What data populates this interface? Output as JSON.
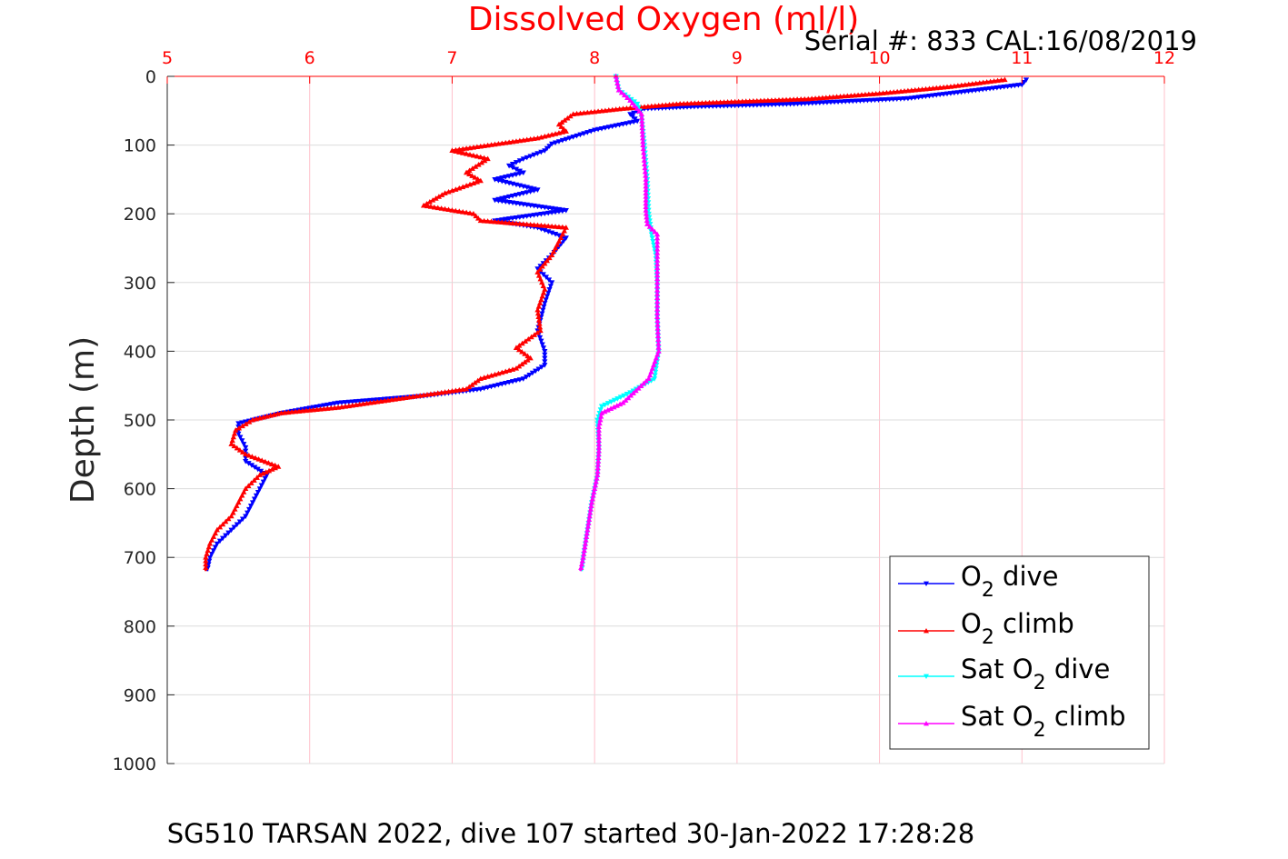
{
  "chart_data": {
    "type": "line",
    "title": "Dissolved Oxygen (ml/l)",
    "subtitle": "Serial #: 833  CAL:16/08/2019",
    "xlabel": "",
    "ylabel": "Depth (m)",
    "caption": "SG510 TARSAN 2022, dive 107 started 30-Jan-2022 17:28:28",
    "xlim": [
      5,
      12
    ],
    "ylim": [
      0,
      1000
    ],
    "y_reversed": true,
    "x_axis_position": "top",
    "x_ticks": [
      "5",
      "6",
      "7",
      "8",
      "9",
      "10",
      "11",
      "12"
    ],
    "y_ticks": [
      "0",
      "100",
      "200",
      "300",
      "400",
      "500",
      "600",
      "700",
      "800",
      "900",
      "1000"
    ],
    "grid": true,
    "legend_position": "bottom-right",
    "colors": {
      "title": "#ff0000",
      "x_ticks": "#ff0000",
      "grid": "#ffc0cb"
    },
    "series": [
      {
        "name_parts": [
          "O",
          "2",
          " dive"
        ],
        "color": "#0000ff",
        "marker": "triangle-down",
        "points": [
          [
            11.03,
            5
          ],
          [
            11.0,
            12
          ],
          [
            10.6,
            22
          ],
          [
            10.2,
            32
          ],
          [
            9.4,
            40
          ],
          [
            8.7,
            44
          ],
          [
            8.35,
            47
          ],
          [
            8.25,
            55
          ],
          [
            8.3,
            65
          ],
          [
            8.0,
            78
          ],
          [
            7.85,
            88
          ],
          [
            7.7,
            98
          ],
          [
            7.65,
            108
          ],
          [
            7.5,
            120
          ],
          [
            7.4,
            130
          ],
          [
            7.5,
            140
          ],
          [
            7.3,
            150
          ],
          [
            7.6,
            165
          ],
          [
            7.3,
            180
          ],
          [
            7.8,
            195
          ],
          [
            7.3,
            210
          ],
          [
            7.6,
            220
          ],
          [
            7.8,
            235
          ],
          [
            7.7,
            260
          ],
          [
            7.6,
            280
          ],
          [
            7.7,
            300
          ],
          [
            7.65,
            330
          ],
          [
            7.6,
            370
          ],
          [
            7.65,
            400
          ],
          [
            7.65,
            420
          ],
          [
            7.5,
            440
          ],
          [
            7.2,
            455
          ],
          [
            6.8,
            465
          ],
          [
            6.2,
            475
          ],
          [
            5.8,
            490
          ],
          [
            5.5,
            505
          ],
          [
            5.5,
            520
          ],
          [
            5.55,
            540
          ],
          [
            5.55,
            560
          ],
          [
            5.7,
            580
          ],
          [
            5.65,
            600
          ],
          [
            5.6,
            620
          ],
          [
            5.55,
            640
          ],
          [
            5.45,
            660
          ],
          [
            5.35,
            680
          ],
          [
            5.3,
            700
          ],
          [
            5.28,
            720
          ]
        ]
      },
      {
        "name_parts": [
          "O",
          "2",
          " climb"
        ],
        "color": "#ff0000",
        "marker": "triangle-up",
        "points": [
          [
            10.88,
            5
          ],
          [
            10.5,
            15
          ],
          [
            10.0,
            25
          ],
          [
            9.5,
            33
          ],
          [
            8.6,
            40
          ],
          [
            8.2,
            47
          ],
          [
            7.85,
            55
          ],
          [
            7.75,
            70
          ],
          [
            7.8,
            80
          ],
          [
            7.6,
            90
          ],
          [
            7.0,
            108
          ],
          [
            7.25,
            120
          ],
          [
            7.1,
            140
          ],
          [
            7.2,
            152
          ],
          [
            6.95,
            170
          ],
          [
            6.8,
            188
          ],
          [
            7.15,
            200
          ],
          [
            7.2,
            210
          ],
          [
            7.8,
            220
          ],
          [
            7.75,
            240
          ],
          [
            7.7,
            260
          ],
          [
            7.6,
            285
          ],
          [
            7.65,
            310
          ],
          [
            7.6,
            340
          ],
          [
            7.62,
            370
          ],
          [
            7.45,
            395
          ],
          [
            7.55,
            410
          ],
          [
            7.45,
            425
          ],
          [
            7.2,
            440
          ],
          [
            7.1,
            455
          ],
          [
            6.6,
            470
          ],
          [
            6.2,
            482
          ],
          [
            5.8,
            490
          ],
          [
            5.6,
            500
          ],
          [
            5.48,
            515
          ],
          [
            5.45,
            535
          ],
          [
            5.55,
            550
          ],
          [
            5.78,
            568
          ],
          [
            5.65,
            580
          ],
          [
            5.55,
            600
          ],
          [
            5.5,
            620
          ],
          [
            5.45,
            640
          ],
          [
            5.35,
            660
          ],
          [
            5.3,
            680
          ],
          [
            5.27,
            700
          ],
          [
            5.27,
            720
          ]
        ]
      },
      {
        "name_parts": [
          "Sat O",
          "2",
          " dive"
        ],
        "color": "#00ffff",
        "marker": "triangle-down",
        "points": [
          [
            8.15,
            0
          ],
          [
            8.17,
            20
          ],
          [
            8.3,
            40
          ],
          [
            8.33,
            60
          ],
          [
            8.35,
            100
          ],
          [
            8.37,
            150
          ],
          [
            8.38,
            200
          ],
          [
            8.4,
            230
          ],
          [
            8.43,
            260
          ],
          [
            8.44,
            300
          ],
          [
            8.44,
            350
          ],
          [
            8.45,
            400
          ],
          [
            8.42,
            440
          ],
          [
            8.25,
            460
          ],
          [
            8.05,
            480
          ],
          [
            8.02,
            500
          ],
          [
            8.03,
            540
          ],
          [
            8.02,
            580
          ],
          [
            7.98,
            620
          ],
          [
            7.95,
            660
          ],
          [
            7.92,
            700
          ],
          [
            7.91,
            720
          ]
        ]
      },
      {
        "name_parts": [
          "Sat O",
          "2",
          " climb"
        ],
        "color": "#ff00ff",
        "marker": "triangle-up",
        "points": [
          [
            8.15,
            0
          ],
          [
            8.17,
            20
          ],
          [
            8.25,
            35
          ],
          [
            8.33,
            55
          ],
          [
            8.34,
            100
          ],
          [
            8.36,
            150
          ],
          [
            8.36,
            195
          ],
          [
            8.37,
            215
          ],
          [
            8.44,
            230
          ],
          [
            8.44,
            300
          ],
          [
            8.44,
            350
          ],
          [
            8.45,
            400
          ],
          [
            8.38,
            440
          ],
          [
            8.2,
            475
          ],
          [
            8.05,
            490
          ],
          [
            8.03,
            510
          ],
          [
            8.03,
            545
          ],
          [
            8.02,
            580
          ],
          [
            7.98,
            620
          ],
          [
            7.95,
            660
          ],
          [
            7.92,
            700
          ],
          [
            7.9,
            720
          ]
        ]
      }
    ]
  }
}
